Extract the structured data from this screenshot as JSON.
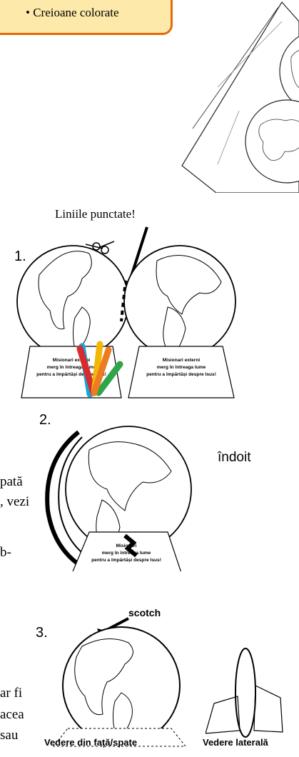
{
  "supplies": {
    "item": "Creioane colorate",
    "bullet": "•"
  },
  "body_fragments": [
    "pată",
    ", vezi",
    "b-",
    "ar fi",
    "acea",
    "sau"
  ],
  "callout_dashed": "Liniile punctate!",
  "steps": [
    {
      "number": "1.",
      "left_card": [
        "Misionari externi",
        "merg în întreaga lume",
        "pentru a împărtăși despre Isus!"
      ],
      "right_card": [
        "Misionari externi",
        "merg în întreaga lume",
        "pentru a împărtăși despre Isus!"
      ]
    },
    {
      "number": "2.",
      "folded_label": "îndoit",
      "card": [
        "Misionari",
        "merg în întreaga lume",
        "pentru a împărtăși despre Isus!"
      ]
    },
    {
      "number": "3.",
      "tape_label": "scotch"
    }
  ],
  "views": {
    "front_back": "Vedere din față/spate",
    "side": "Vedere laterală"
  }
}
